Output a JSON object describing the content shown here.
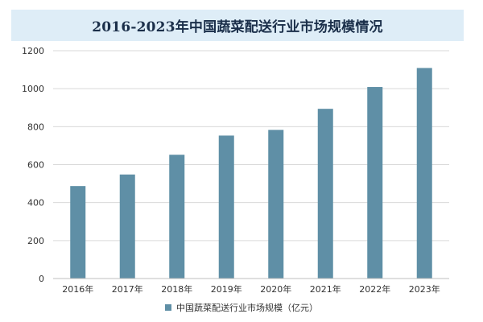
{
  "colors": {
    "bar": "#5f8fa6",
    "grid": "#d9d9d9",
    "axis": "#bfbfbf",
    "tick_text": "#333333",
    "title_bg": "#deedf7"
  },
  "chart_data": {
    "type": "bar",
    "title": "2016-2023年中国蔬菜配送行业市场规模情况",
    "categories": [
      "2016年",
      "2017年",
      "2018年",
      "2019年",
      "2020年",
      "2021年",
      "2022年",
      "2023年"
    ],
    "series": [
      {
        "name": "中国蔬菜配送行业市场规模（亿元）",
        "values": [
          487,
          548,
          652,
          753,
          783,
          894,
          1009,
          1109
        ]
      }
    ],
    "ylim": [
      0,
      1200
    ],
    "yticks": [
      "0",
      "200",
      "400",
      "600",
      "800",
      "1000",
      "1200"
    ],
    "grid": true,
    "legend_position": "bottom"
  }
}
